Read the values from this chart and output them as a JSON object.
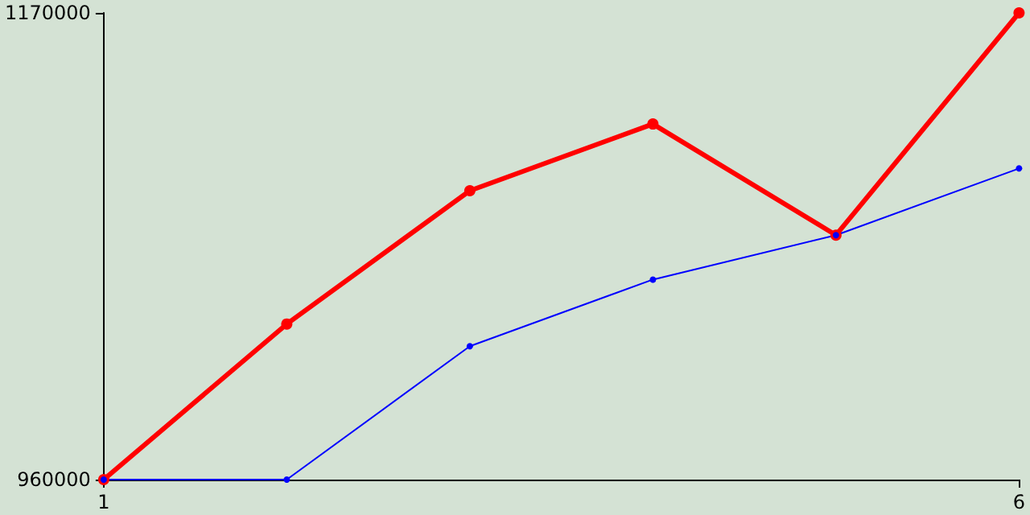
{
  "chart_data": {
    "type": "line",
    "x": [
      1,
      2,
      3,
      4,
      5,
      6
    ],
    "series": [
      {
        "color": "#ff0000",
        "values": [
          960000,
          1030000,
          1090000,
          1120000,
          1070000,
          1170000
        ]
      },
      {
        "color": "#0000ff",
        "values": [
          960000,
          960000,
          1020000,
          1050000,
          1070000,
          1100000
        ]
      }
    ],
    "xlim": [
      1,
      6
    ],
    "xticks": [
      1,
      6
    ],
    "ylim": [
      960000,
      1170000
    ],
    "yticks": [
      960000,
      1170000
    ],
    "marker": "circle",
    "line_style": "solid"
  }
}
